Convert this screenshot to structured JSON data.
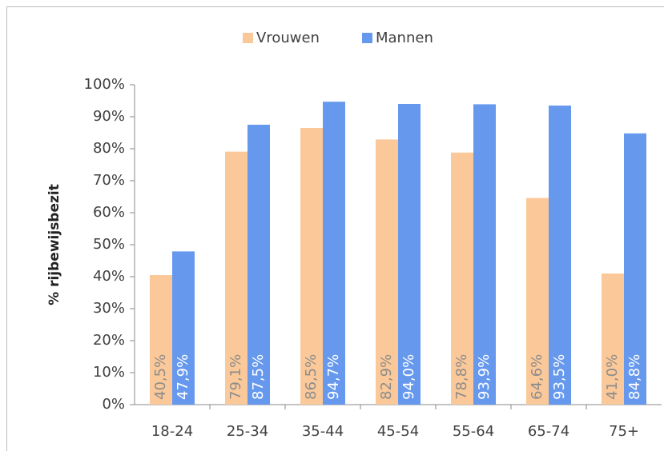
{
  "chart_data": {
    "type": "bar",
    "categories": [
      "18-24",
      "25-34",
      "35-44",
      "45-54",
      "55-64",
      "65-74",
      "75+"
    ],
    "series": [
      {
        "name": "Vrouwen",
        "color": "#fbc999",
        "values": [
          40.5,
          79.1,
          86.5,
          82.9,
          78.8,
          64.6,
          41.0
        ],
        "value_labels": [
          "40,5%",
          "79,1%",
          "86,5%",
          "82,9%",
          "78,8%",
          "64,6%",
          "41,0%"
        ]
      },
      {
        "name": "Mannen",
        "color": "#6699ee",
        "values": [
          47.9,
          87.5,
          94.7,
          94.0,
          93.9,
          93.5,
          84.8
        ],
        "value_labels": [
          "47,9%",
          "87,5%",
          "94,7%",
          "94,0%",
          "93,9%",
          "93,5%",
          "84,8%"
        ]
      }
    ],
    "ylabel": "% rijbewijsbezit",
    "ylim": [
      0,
      100
    ],
    "yticks": [
      {
        "value": 0,
        "label": "0%"
      },
      {
        "value": 10,
        "label": "10%"
      },
      {
        "value": 20,
        "label": "20%"
      },
      {
        "value": 30,
        "label": "30%"
      },
      {
        "value": 40,
        "label": "40%"
      },
      {
        "value": 50,
        "label": "50%"
      },
      {
        "value": 60,
        "label": "60%"
      },
      {
        "value": 70,
        "label": "70%"
      },
      {
        "value": 80,
        "label": "80%"
      },
      {
        "value": 90,
        "label": "90%"
      },
      {
        "value": 100,
        "label": "100%"
      }
    ],
    "grid": false,
    "legend": "top"
  }
}
